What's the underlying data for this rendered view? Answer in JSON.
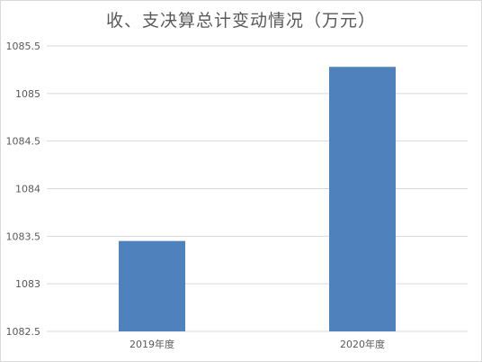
{
  "chart_data": {
    "type": "bar",
    "title": "收、支决算总计变动情况（万元）",
    "categories": [
      "2019年度",
      "2020年度"
    ],
    "values": [
      1083.45,
      1085.28
    ],
    "ylim": [
      1082.5,
      1085.5
    ],
    "yticks": [
      "1082.5",
      "1083",
      "1083.5",
      "1084",
      "1084.5",
      "1085",
      "1085.5"
    ],
    "xlabel": "",
    "ylabel": "",
    "grid": true,
    "legend": "none",
    "bar_color": "#4f81bd",
    "grid_color": "#d9d9d9"
  }
}
